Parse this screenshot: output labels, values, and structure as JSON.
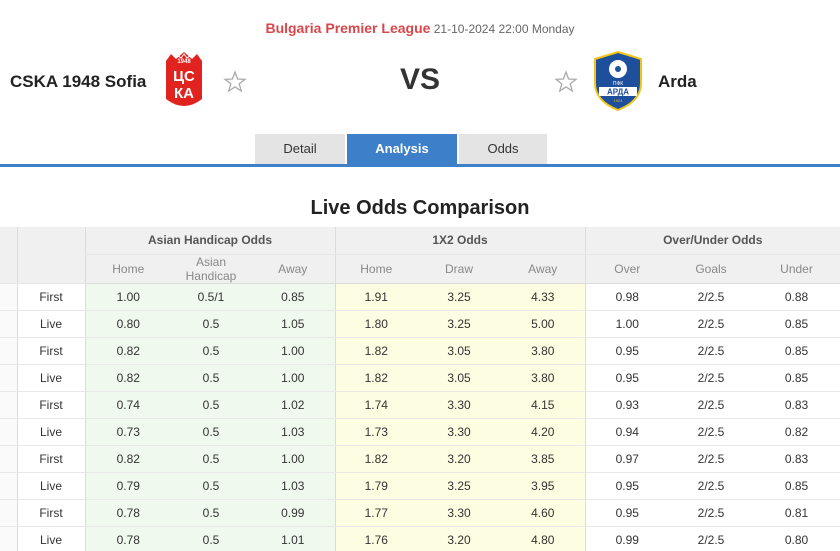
{
  "match": {
    "league": "Bulgaria Premier League",
    "datetime": "21-10-2024 22:00 Monday",
    "home_team": "CSKA 1948 Sofia",
    "away_team": "Arda",
    "vs_label": "VS"
  },
  "tabs": [
    {
      "label": "Detail"
    },
    {
      "label": "Analysis"
    },
    {
      "label": "Odds"
    }
  ],
  "active_tab": "Analysis",
  "section_title": "Live Odds Comparison",
  "groups": {
    "asian": "Asian Handicap Odds",
    "x12": "1X2 Odds",
    "ou": "Over/Under Odds"
  },
  "columns": {
    "ah": [
      "Home",
      "Asian Handicap",
      "Away"
    ],
    "x12": [
      "Home",
      "Draw",
      "Away"
    ],
    "ou": [
      "Over",
      "Goals",
      "Under"
    ]
  },
  "rows": [
    {
      "type": "First",
      "ah": [
        "1.00",
        "0.5/1",
        "0.85"
      ],
      "x12": [
        "1.91",
        "3.25",
        "4.33"
      ],
      "ou": [
        "0.98",
        "2/2.5",
        "0.88"
      ]
    },
    {
      "type": "Live",
      "ah": [
        "0.80",
        "0.5",
        "1.05"
      ],
      "x12": [
        "1.80",
        "3.25",
        "5.00"
      ],
      "ou": [
        "1.00",
        "2/2.5",
        "0.85"
      ]
    },
    {
      "type": "First",
      "ah": [
        "0.82",
        "0.5",
        "1.00"
      ],
      "x12": [
        "1.82",
        "3.05",
        "3.80"
      ],
      "ou": [
        "0.95",
        "2/2.5",
        "0.85"
      ]
    },
    {
      "type": "Live",
      "ah": [
        "0.82",
        "0.5",
        "1.00"
      ],
      "x12": [
        "1.82",
        "3.05",
        "3.80"
      ],
      "ou": [
        "0.95",
        "2/2.5",
        "0.85"
      ]
    },
    {
      "type": "First",
      "ah": [
        "0.74",
        "0.5",
        "1.02"
      ],
      "x12": [
        "1.74",
        "3.30",
        "4.15"
      ],
      "ou": [
        "0.93",
        "2/2.5",
        "0.83"
      ]
    },
    {
      "type": "Live",
      "ah": [
        "0.73",
        "0.5",
        "1.03"
      ],
      "x12": [
        "1.73",
        "3.30",
        "4.20"
      ],
      "ou": [
        "0.94",
        "2/2.5",
        "0.82"
      ]
    },
    {
      "type": "First",
      "ah": [
        "0.82",
        "0.5",
        "1.00"
      ],
      "x12": [
        "1.82",
        "3.20",
        "3.85"
      ],
      "ou": [
        "0.97",
        "2/2.5",
        "0.83"
      ]
    },
    {
      "type": "Live",
      "ah": [
        "0.79",
        "0.5",
        "1.03"
      ],
      "x12": [
        "1.79",
        "3.25",
        "3.95"
      ],
      "ou": [
        "0.95",
        "2/2.5",
        "0.85"
      ]
    },
    {
      "type": "First",
      "ah": [
        "0.78",
        "0.5",
        "0.99"
      ],
      "x12": [
        "1.77",
        "3.30",
        "4.60"
      ],
      "ou": [
        "0.95",
        "2/2.5",
        "0.81"
      ]
    },
    {
      "type": "Live",
      "ah": [
        "0.78",
        "0.5",
        "1.01"
      ],
      "x12": [
        "1.76",
        "3.20",
        "4.80"
      ],
      "ou": [
        "0.99",
        "2/2.5",
        "0.80"
      ]
    }
  ],
  "colors": {
    "accent": "#3d7fc8",
    "league": "#d9474b",
    "ah_bg": "#f0f9ee",
    "x12_bg": "#fdfde2"
  },
  "icons": {
    "home_logo": "cska-crest-icon",
    "away_logo": "arda-crest-icon",
    "favorite": "star-outline-icon"
  }
}
